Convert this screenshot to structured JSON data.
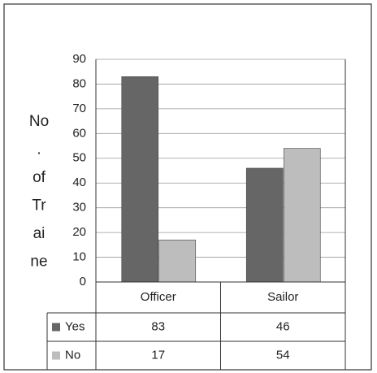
{
  "chart_data": {
    "type": "bar",
    "y_label_lines": [
      "No",
      ".",
      "of",
      "Tr",
      "ai",
      "ne"
    ],
    "categories": [
      "Officer",
      "Sailor"
    ],
    "series": [
      {
        "name": "Yes",
        "color": "#666666",
        "values": [
          83,
          46
        ]
      },
      {
        "name": "No",
        "color": "#bdbdbd",
        "values": [
          17,
          54
        ]
      }
    ],
    "ylim": [
      0,
      90
    ],
    "yticks": [
      0,
      10,
      20,
      30,
      40,
      50,
      60,
      70,
      80,
      90
    ],
    "grid": true,
    "data_table": true
  }
}
